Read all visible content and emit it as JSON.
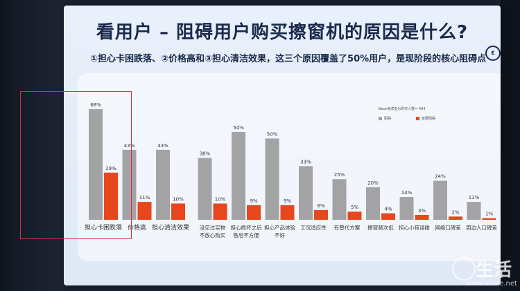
{
  "slide": {
    "title": "看用户 – 阻碍用户购买擦窗机的原因是什么?",
    "subtitle": "①担心卡困跌落、②价格高和③担心清洁效果，这三个原因覆盖了50%用户，是现阶段的核心阻碍点",
    "base_note": "Base考虑但为购买人群= 494",
    "watermark": "生活",
    "watermark_url": "www.aelife.net"
  },
  "colors": {
    "primary_bar": "#a3a3a5",
    "secondary_bar": "#e8461c",
    "highlight": "#d8303a"
  },
  "chart_data": {
    "type": "bar",
    "categories": [
      "担心卡困跌落",
      "价格高",
      "担心清洁效果",
      "没见过实物\n不放心购买",
      "担心损坏之后\n售后不方便",
      "担心产品体验\n不好",
      "工况适应性",
      "有替代方案",
      "擦窗频次低",
      "担心小孩误碰",
      "网络口碑差",
      "周边人口碑差"
    ],
    "series": [
      {
        "name": "阻碍",
        "values": [
          68,
          43,
          43,
          38,
          54,
          50,
          33,
          25,
          20,
          14,
          24,
          11
        ]
      },
      {
        "name": "首要阻碍",
        "values": [
          29,
          11,
          10,
          10,
          9,
          9,
          6,
          5,
          4,
          3,
          2,
          1
        ]
      }
    ],
    "ylim": [
      0,
      75
    ],
    "legend": "right"
  }
}
